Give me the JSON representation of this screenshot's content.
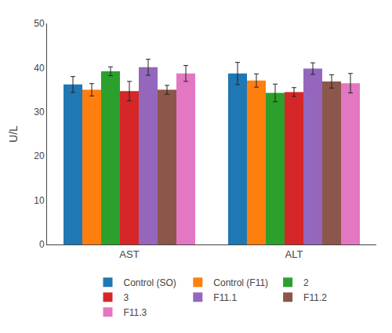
{
  "chart_data": {
    "type": "bar",
    "categories": [
      "AST",
      "ALT"
    ],
    "series": [
      {
        "name": "Control (SO)",
        "values": [
          36.2,
          38.7
        ],
        "errors": [
          1.8,
          2.5
        ]
      },
      {
        "name": "Control (F11)",
        "values": [
          35.0,
          37.1
        ],
        "errors": [
          1.4,
          1.5
        ]
      },
      {
        "name": "2",
        "values": [
          39.2,
          34.3
        ],
        "errors": [
          1.0,
          2.0
        ]
      },
      {
        "name": "3",
        "values": [
          34.7,
          34.5
        ],
        "errors": [
          2.2,
          1.0
        ]
      },
      {
        "name": "F11.1",
        "values": [
          40.1,
          39.8
        ],
        "errors": [
          1.8,
          1.3
        ]
      },
      {
        "name": "F11.2",
        "values": [
          35.0,
          36.9
        ],
        "errors": [
          1.0,
          1.5
        ]
      },
      {
        "name": "F11.3",
        "values": [
          38.7,
          36.5
        ],
        "errors": [
          1.8,
          2.2
        ]
      }
    ],
    "ylabel": "U/L",
    "ylim": [
      0,
      50
    ],
    "yticks": [
      0,
      10,
      20,
      30,
      40,
      50
    ],
    "grid": false,
    "legend": "bottom"
  }
}
